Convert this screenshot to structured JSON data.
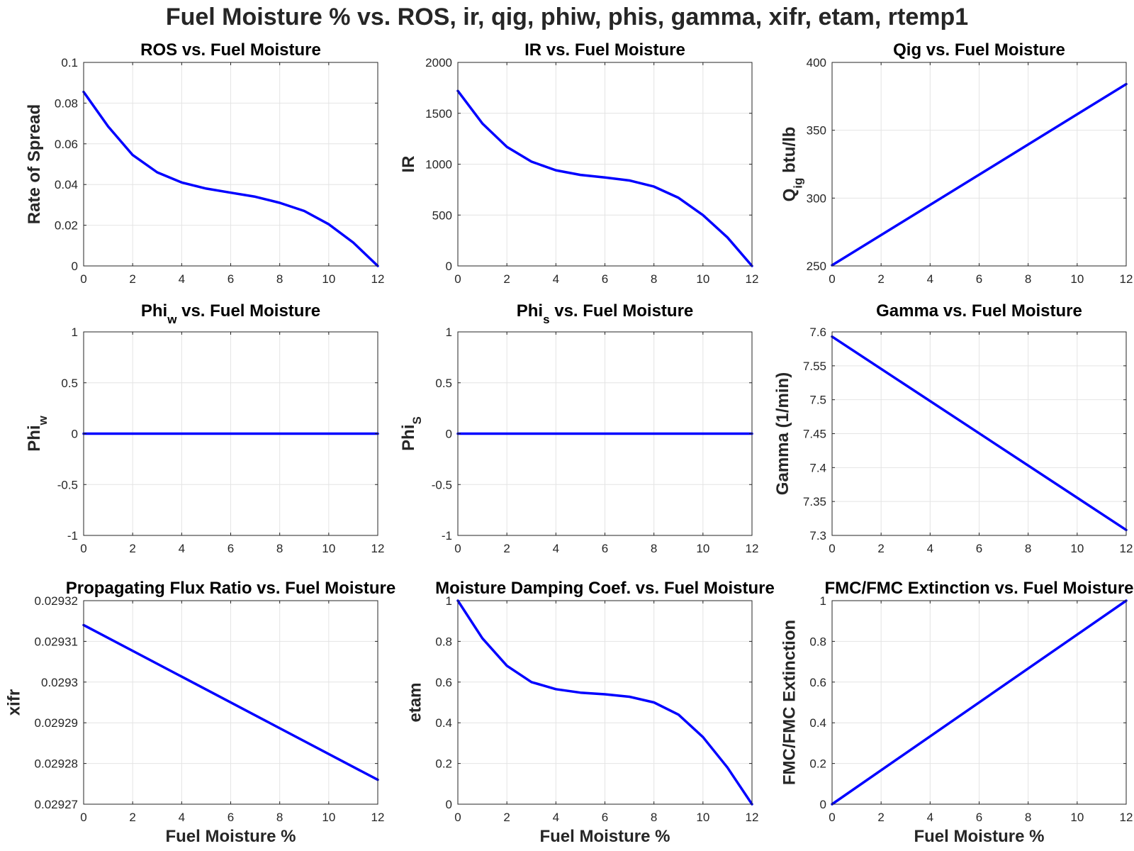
{
  "figure": {
    "title": "Fuel Moisture % vs. ROS, ir, qig, phiw, phis, gamma, xifr, etam, rtemp1",
    "line_color": "#0000ff"
  },
  "chart_data": [
    {
      "id": "ros",
      "type": "line",
      "title": {
        "main": "ROS vs. Fuel Moisture"
      },
      "xlabel": "",
      "ylabel": {
        "main": "Rate of Spread"
      },
      "xlim": [
        0,
        12
      ],
      "ylim": [
        0,
        0.1
      ],
      "xticks": [
        0,
        2,
        4,
        6,
        8,
        10,
        12
      ],
      "yticks": [
        0,
        0.02,
        0.04,
        0.06,
        0.08,
        0.1
      ],
      "ytick_labels": [
        "0",
        "0.02",
        "0.04",
        "0.06",
        "0.08",
        "0.1"
      ],
      "grid": true,
      "series": [
        {
          "x": [
            0,
            1,
            2,
            3,
            4,
            5,
            6,
            7,
            8,
            9,
            10,
            11,
            12
          ],
          "y": [
            0.0855,
            0.0685,
            0.0545,
            0.046,
            0.041,
            0.038,
            0.036,
            0.034,
            0.031,
            0.027,
            0.0205,
            0.0115,
            0.0
          ]
        }
      ]
    },
    {
      "id": "ir",
      "type": "line",
      "title": {
        "main": "IR vs. Fuel Moisture"
      },
      "xlabel": "",
      "ylabel": {
        "main": "IR"
      },
      "xlim": [
        0,
        12
      ],
      "ylim": [
        0,
        2000
      ],
      "xticks": [
        0,
        2,
        4,
        6,
        8,
        10,
        12
      ],
      "yticks": [
        0,
        500,
        1000,
        1500,
        2000
      ],
      "ytick_labels": [
        "0",
        "500",
        "1000",
        "1500",
        "2000"
      ],
      "grid": true,
      "series": [
        {
          "x": [
            0,
            1,
            2,
            3,
            4,
            5,
            6,
            7,
            8,
            9,
            10,
            11,
            12
          ],
          "y": [
            1720,
            1400,
            1170,
            1025,
            940,
            895,
            870,
            840,
            780,
            670,
            500,
            280,
            0
          ]
        }
      ]
    },
    {
      "id": "qig",
      "type": "line",
      "title": {
        "main": "Qig vs. Fuel Moisture"
      },
      "xlabel": "",
      "ylabel": {
        "main": "Q",
        "sub": "ig",
        "rest": " btu/lb"
      },
      "xlim": [
        0,
        12
      ],
      "ylim": [
        250,
        400
      ],
      "xticks": [
        0,
        2,
        4,
        6,
        8,
        10,
        12
      ],
      "yticks": [
        250,
        300,
        350,
        400
      ],
      "ytick_labels": [
        "250",
        "300",
        "350",
        "400"
      ],
      "grid": true,
      "series": [
        {
          "x": [
            0,
            12
          ],
          "y": [
            250.5,
            384
          ]
        }
      ]
    },
    {
      "id": "phiw",
      "type": "line",
      "title": {
        "main": "Phi",
        "sub": "w",
        "rest": " vs. Fuel Moisture"
      },
      "xlabel": "",
      "ylabel": {
        "main": "Phi",
        "sub": "w"
      },
      "xlim": [
        0,
        12
      ],
      "ylim": [
        -1,
        1
      ],
      "xticks": [
        0,
        2,
        4,
        6,
        8,
        10,
        12
      ],
      "yticks": [
        -1,
        -0.5,
        0,
        0.5,
        1
      ],
      "ytick_labels": [
        "-1",
        "-0.5",
        "0",
        "0.5",
        "1"
      ],
      "grid": true,
      "series": [
        {
          "x": [
            0,
            12
          ],
          "y": [
            0,
            0
          ]
        }
      ]
    },
    {
      "id": "phis",
      "type": "line",
      "title": {
        "main": "Phi",
        "sub": "s",
        "rest": " vs. Fuel Moisture"
      },
      "xlabel": "",
      "ylabel": {
        "main": "Phi",
        "sub": "S"
      },
      "xlim": [
        0,
        12
      ],
      "ylim": [
        -1,
        1
      ],
      "xticks": [
        0,
        2,
        4,
        6,
        8,
        10,
        12
      ],
      "yticks": [
        -1,
        -0.5,
        0,
        0.5,
        1
      ],
      "ytick_labels": [
        "-1",
        "-0.5",
        "0",
        "0.5",
        "1"
      ],
      "grid": true,
      "series": [
        {
          "x": [
            0,
            12
          ],
          "y": [
            0,
            0
          ]
        }
      ]
    },
    {
      "id": "gamma",
      "type": "line",
      "title": {
        "main": "Gamma vs. Fuel Moisture"
      },
      "xlabel": "",
      "ylabel": {
        "main": "Gamma (1/min)"
      },
      "xlim": [
        0,
        12
      ],
      "ylim": [
        7.3,
        7.6
      ],
      "xticks": [
        0,
        2,
        4,
        6,
        8,
        10,
        12
      ],
      "yticks": [
        7.3,
        7.35,
        7.4,
        7.45,
        7.5,
        7.55,
        7.6
      ],
      "ytick_labels": [
        "7.3",
        "7.35",
        "7.4",
        "7.45",
        "7.5",
        "7.55",
        "7.6"
      ],
      "grid": true,
      "series": [
        {
          "x": [
            0,
            12
          ],
          "y": [
            7.593,
            7.308
          ]
        }
      ]
    },
    {
      "id": "xifr",
      "type": "line",
      "title": {
        "main": "Propagating Flux Ratio vs. Fuel Moisture"
      },
      "xlabel": "Fuel Moisture %",
      "ylabel": {
        "main": "xifr"
      },
      "xlim": [
        0,
        12
      ],
      "ylim": [
        0.02927,
        0.02932
      ],
      "xticks": [
        0,
        2,
        4,
        6,
        8,
        10,
        12
      ],
      "yticks": [
        0.02927,
        0.02928,
        0.02929,
        0.0293,
        0.02931,
        0.02932
      ],
      "ytick_labels": [
        "0.02927",
        "0.02928",
        "0.02929",
        "0.0293",
        "0.02931",
        "0.02932"
      ],
      "grid": true,
      "series": [
        {
          "x": [
            0,
            12
          ],
          "y": [
            0.029314,
            0.029276
          ]
        }
      ]
    },
    {
      "id": "etam",
      "type": "line",
      "title": {
        "main": "Moisture Damping Coef. vs. Fuel Moisture"
      },
      "xlabel": "Fuel Moisture %",
      "ylabel": {
        "main": "etam"
      },
      "xlim": [
        0,
        12
      ],
      "ylim": [
        0,
        1
      ],
      "xticks": [
        0,
        2,
        4,
        6,
        8,
        10,
        12
      ],
      "yticks": [
        0,
        0.2,
        0.4,
        0.6,
        0.8,
        1
      ],
      "ytick_labels": [
        "0",
        "0.2",
        "0.4",
        "0.6",
        "0.8",
        "1"
      ],
      "grid": true,
      "series": [
        {
          "x": [
            0,
            1,
            2,
            3,
            4,
            5,
            6,
            7,
            8,
            9,
            10,
            11,
            12
          ],
          "y": [
            1.0,
            0.815,
            0.68,
            0.6,
            0.565,
            0.548,
            0.54,
            0.528,
            0.5,
            0.44,
            0.33,
            0.18,
            0.0
          ]
        }
      ]
    },
    {
      "id": "rtemp1",
      "type": "line",
      "title": {
        "main": "FMC/FMC Extinction vs. Fuel Moisture"
      },
      "xlabel": "Fuel Moisture %",
      "ylabel": {
        "main": "FMC/FMC Extinction"
      },
      "xlim": [
        0,
        12
      ],
      "ylim": [
        0,
        1
      ],
      "xticks": [
        0,
        2,
        4,
        6,
        8,
        10,
        12
      ],
      "yticks": [
        0,
        0.2,
        0.4,
        0.6,
        0.8,
        1
      ],
      "ytick_labels": [
        "0",
        "0.2",
        "0.4",
        "0.6",
        "0.8",
        "1"
      ],
      "grid": true,
      "series": [
        {
          "x": [
            0,
            12
          ],
          "y": [
            0,
            1
          ]
        }
      ]
    }
  ]
}
